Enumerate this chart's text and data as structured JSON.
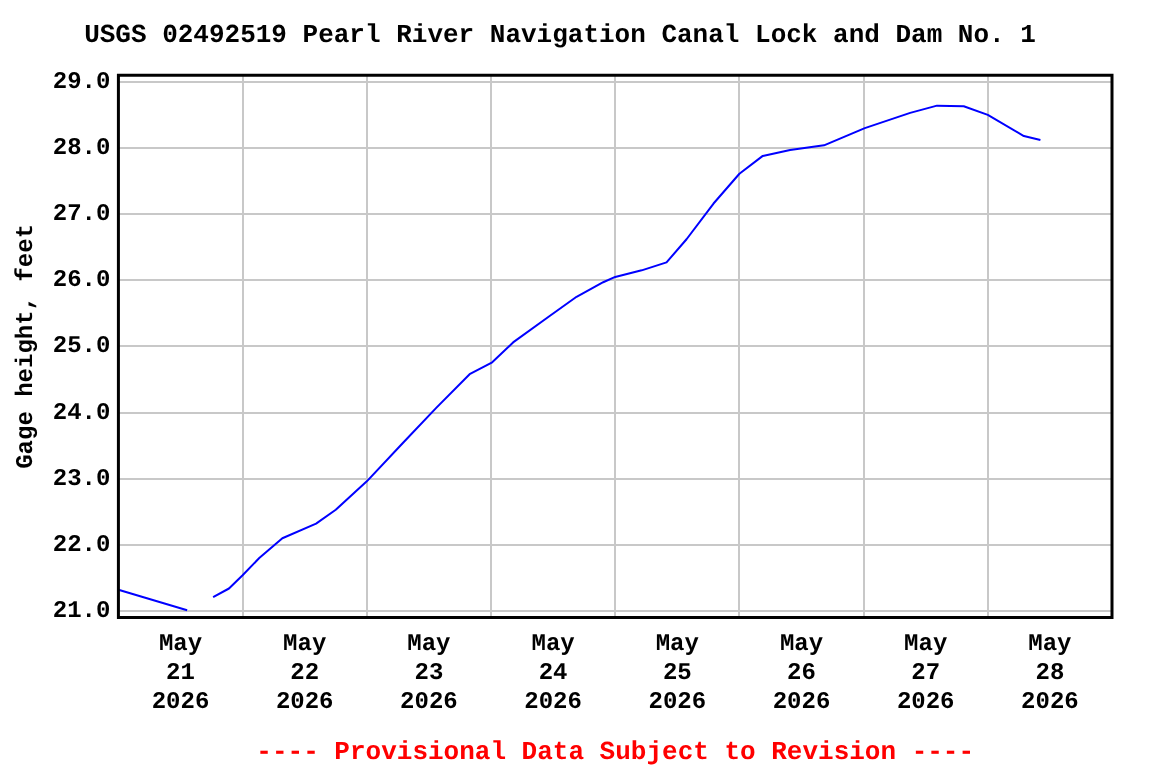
{
  "chart_data": {
    "type": "line",
    "title": "USGS 02492519 Pearl River Navigation Canal Lock and Dam No. 1",
    "ylabel": "Gage height, feet",
    "annotations": [
      "---- Provisional Data Subject to Revision ----"
    ],
    "x": [
      "2026-05-21T00:00",
      "2026-05-21T13:17",
      "2026-05-21T15:30",
      "2026-05-21T18:18",
      "2026-05-21T21:22",
      "2026-05-22T00:00",
      "2026-05-22T03:13",
      "2026-05-22T07:41",
      "2026-05-22T14:12",
      "2026-05-22T18:00",
      "2026-05-23T00:00",
      "2026-05-23T06:58",
      "2026-05-23T13:25",
      "2026-05-23T19:52",
      "2026-05-24T00:14",
      "2026-05-24T04:16",
      "2026-05-24T11:20",
      "2026-05-24T16:32",
      "2026-05-24T21:41",
      "2026-05-25T00:00",
      "2026-05-25T05:07",
      "2026-05-25T09:55",
      "2026-05-25T13:47",
      "2026-05-25T19:00",
      "2026-05-26T00:00",
      "2026-05-26T04:31",
      "2026-05-26T09:48",
      "2026-05-26T16:21",
      "2026-05-27T00:14",
      "2026-05-27T09:00",
      "2026-05-27T14:11",
      "2026-05-27T19:21",
      "2026-05-28T00:00",
      "2026-05-28T06:58",
      "2026-05-28T10:10"
    ],
    "series": [
      {
        "color": "#0000ff",
        "values": [
          21.32,
          21.01,
          null,
          21.21,
          21.34,
          21.54,
          21.8,
          22.1,
          22.32,
          22.53,
          22.96,
          23.54,
          24.07,
          24.58,
          24.76,
          25.06,
          25.46,
          25.75,
          25.97,
          26.05,
          26.15,
          26.27,
          26.62,
          27.16,
          27.61,
          27.88,
          27.97,
          28.04,
          28.3,
          28.53,
          28.64,
          28.63,
          28.5,
          28.18,
          28.12
        ]
      }
    ],
    "xlim": [
      "2026-05-21T00:00",
      "2026-05-29T00:00"
    ],
    "xticks": [
      {
        "value": "2026-05-21T00:00",
        "label": null
      },
      {
        "value": "2026-05-21T12:00",
        "label": "May 21 2026"
      },
      {
        "value": "2026-05-22T00:00",
        "label": null
      },
      {
        "value": "2026-05-22T12:00",
        "label": "May 22 2026"
      },
      {
        "value": "2026-05-23T00:00",
        "label": null
      },
      {
        "value": "2026-05-23T12:00",
        "label": "May 23 2026"
      },
      {
        "value": "2026-05-24T00:00",
        "label": null
      },
      {
        "value": "2026-05-24T12:00",
        "label": "May 24 2026"
      },
      {
        "value": "2026-05-25T00:00",
        "label": null
      },
      {
        "value": "2026-05-25T12:00",
        "label": "May 25 2026"
      },
      {
        "value": "2026-05-26T00:00",
        "label": null
      },
      {
        "value": "2026-05-26T12:00",
        "label": "May 26 2026"
      },
      {
        "value": "2026-05-27T00:00",
        "label": null
      },
      {
        "value": "2026-05-27T12:00",
        "label": "May 27 2026"
      },
      {
        "value": "2026-05-28T00:00",
        "label": null
      },
      {
        "value": "2026-05-28T12:00",
        "label": "May 28 2026"
      },
      {
        "value": "2026-05-29T00:00",
        "label": null
      }
    ],
    "ylim": [
      20.9,
      29.1
    ],
    "yticks": [
      {
        "value": 21,
        "label": "21.0"
      },
      {
        "value": 22,
        "label": "22.0"
      },
      {
        "value": 23,
        "label": "23.0"
      },
      {
        "value": 24,
        "label": "24.0"
      },
      {
        "value": 25,
        "label": "25.0"
      },
      {
        "value": 26,
        "label": "26.0"
      },
      {
        "value": 27,
        "label": "27.0"
      },
      {
        "value": 28,
        "label": "28.0"
      },
      {
        "value": 29,
        "label": "29.0"
      }
    ],
    "grid": true,
    "legend": false,
    "marker": "none",
    "line_style": "solid"
  }
}
